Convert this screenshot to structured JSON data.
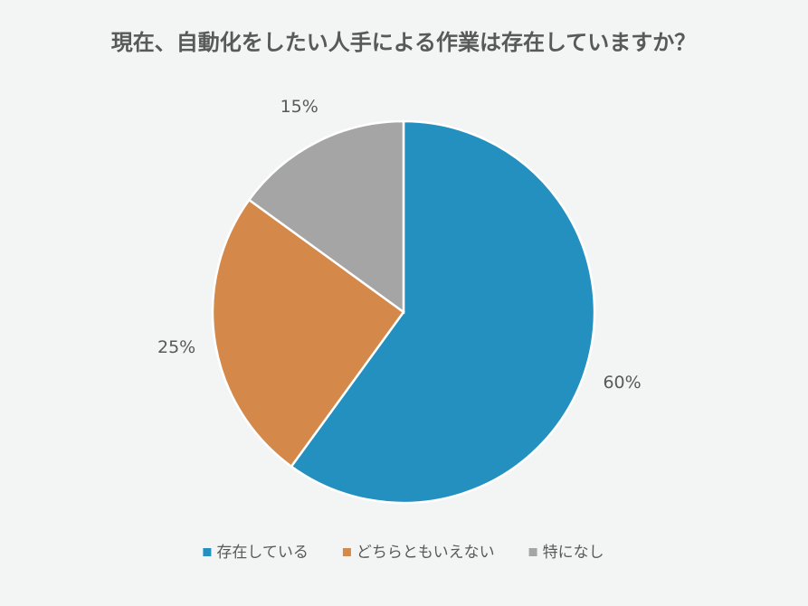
{
  "chart_data": {
    "type": "pie",
    "title": "現在、自動化をしたい人手による作業は存在していますか？",
    "categories": [
      "存在している",
      "どちらともいえない",
      "特になし"
    ],
    "values": [
      60,
      25,
      15
    ],
    "value_labels": [
      "60%",
      "25%",
      "15%"
    ],
    "colors": [
      "#2490c0",
      "#d4894b",
      "#a5a5a5"
    ],
    "legend": "bottom"
  }
}
